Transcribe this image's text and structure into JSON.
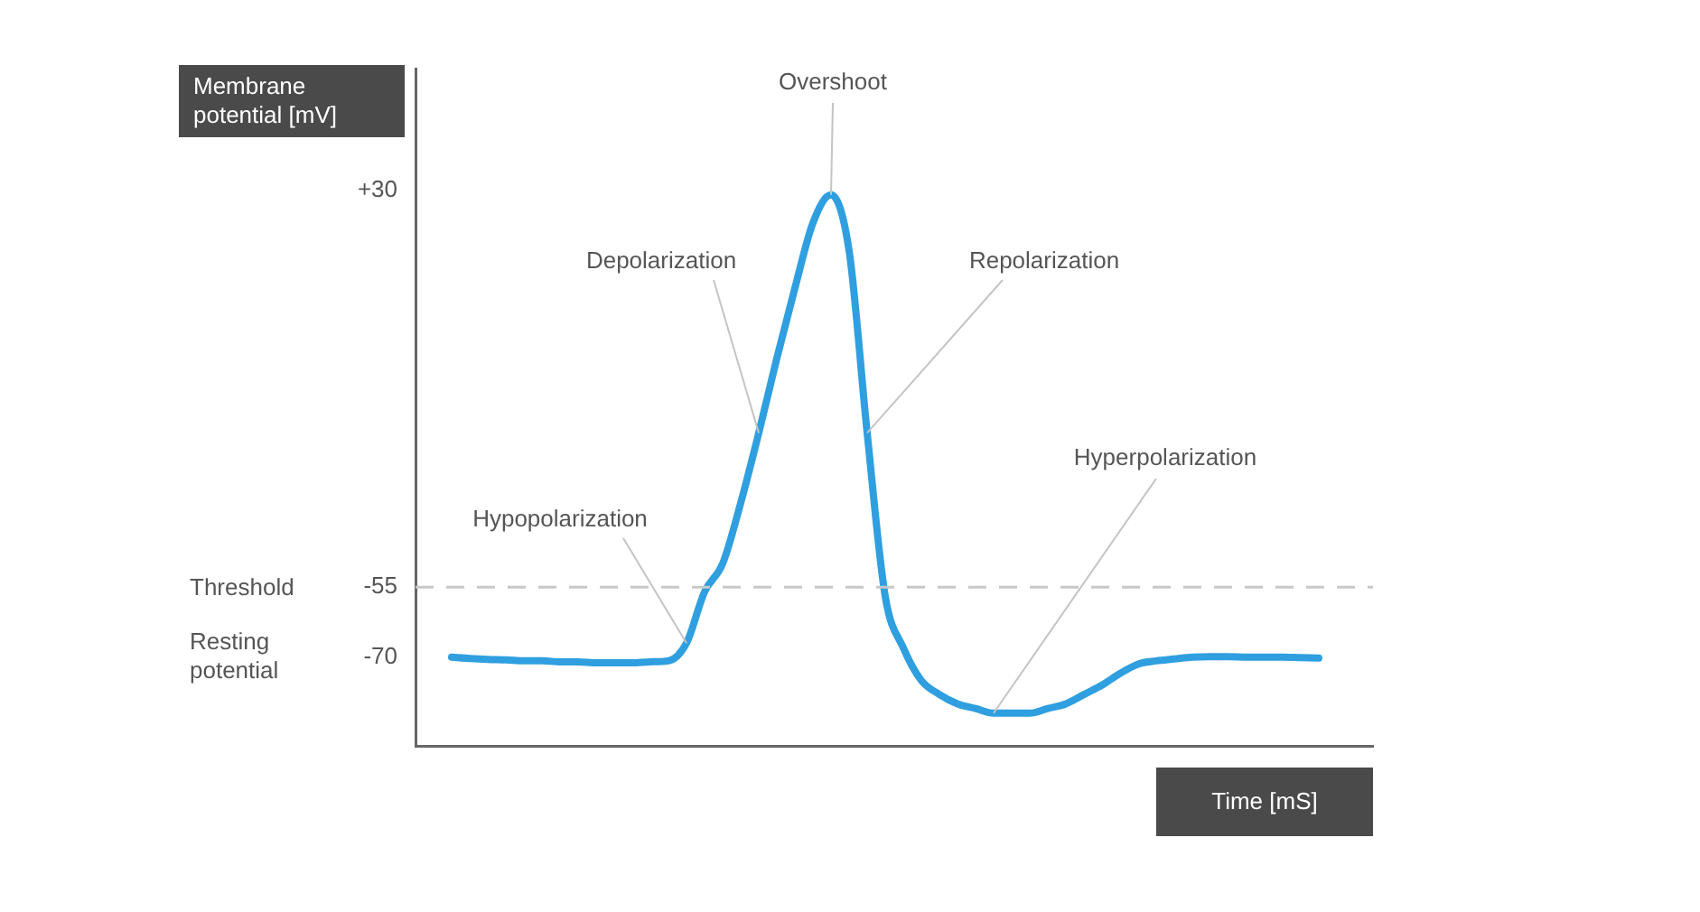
{
  "chart_data": {
    "type": "line",
    "xlabel": "Time [mS]",
    "ylabel": "Membrane potential [mV]",
    "categories": [
      null,
      null,
      null,
      null,
      null,
      null,
      null,
      null,
      null,
      null,
      null,
      null,
      null,
      null,
      null,
      null,
      null,
      null,
      null,
      null,
      null,
      null,
      null,
      null,
      null,
      null,
      null,
      null,
      null,
      null,
      null,
      null,
      null,
      null,
      null,
      null,
      null,
      null,
      null,
      null,
      null,
      null,
      null,
      null,
      null,
      null,
      null,
      null,
      null,
      null,
      null,
      null,
      null,
      null
    ],
    "series": [
      {
        "color": "#2f9fe0",
        "values": [
          null,
          null,
          -70,
          -70.3,
          -70.5,
          -70.6,
          -70.8,
          -70.8,
          -71,
          -71,
          -71.2,
          -71.2,
          -71.2,
          -71,
          -70.8,
          -67,
          -56,
          -50,
          -37,
          -22,
          -6,
          9,
          23,
          29,
          17,
          -22,
          -57,
          -68,
          -75,
          -78,
          -80,
          -81,
          -82,
          -82,
          -82,
          -81,
          -80,
          -78,
          -76,
          -73.5,
          -71.5,
          -70.8,
          -70.4,
          -70,
          -69.9,
          -69.9,
          -70,
          -70,
          -70,
          -70.1,
          -70.2,
          null,
          null,
          null
        ]
      }
    ],
    "ylim": [
      -89,
      56
    ],
    "yticks": [
      {
        "value": 30,
        "label": "+30"
      },
      -55,
      -70
    ],
    "ref_lines": [
      {
        "axis": "y",
        "value": -55,
        "color": "#c8c8c8",
        "line_style": "dashed"
      }
    ],
    "annotations": [
      "Overshoot",
      "Depolarization",
      "Repolarization",
      "Hyperpolarization",
      "Hypopolarization",
      "Threshold",
      "Resting potential"
    ],
    "grid": false,
    "legend": false,
    "marker": "none",
    "line_style": "solid",
    "tick_labels": "y"
  }
}
